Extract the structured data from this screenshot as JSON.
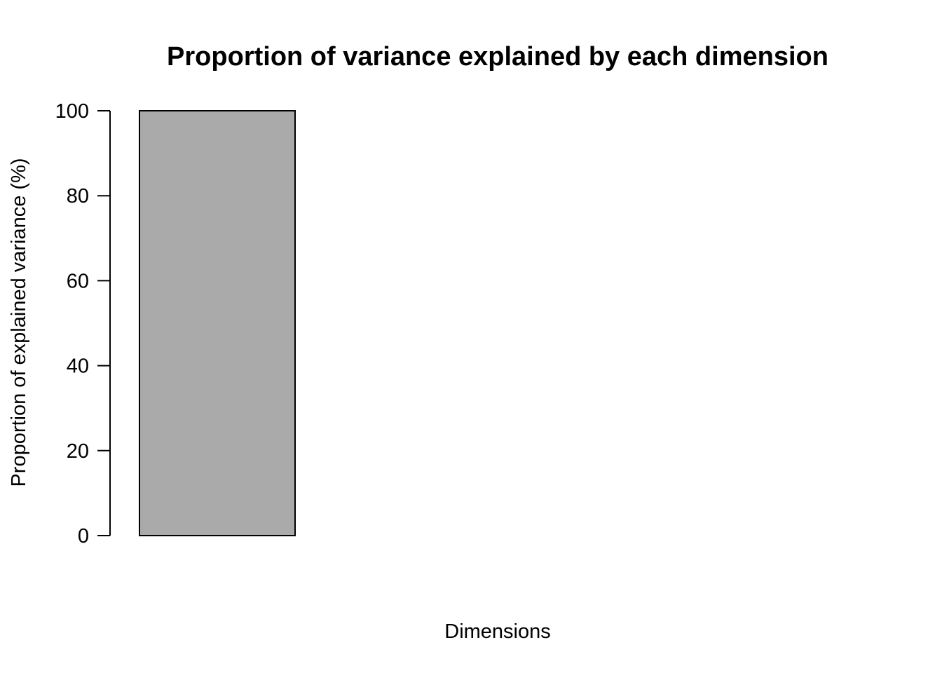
{
  "chart_data": {
    "type": "bar",
    "title": "Proportion of variance explained by each dimension",
    "xlabel": "Dimensions",
    "ylabel": "Proportion of explained variance (%)",
    "categories": [
      "",
      "",
      "",
      ""
    ],
    "values": [
      100,
      0,
      0,
      0
    ],
    "ylim": [
      0,
      100
    ],
    "yticks": [
      0,
      20,
      40,
      60,
      80,
      100
    ],
    "bar_color": "#aaaaaa",
    "bar_border_color": "#000000",
    "grid": false
  }
}
